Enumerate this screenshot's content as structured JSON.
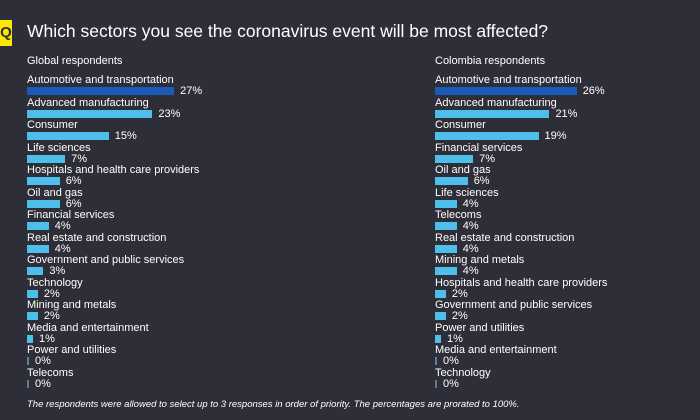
{
  "badge": "Q",
  "title": "Which sectors you see the coronavirus event will be most affected?",
  "footnote": "The respondents were allowed to select up to 3 responses in order of priority. The percentages are prorated to 100%.",
  "colors": {
    "background": "#2e2e38",
    "top_bar": "#1a5ab8",
    "bar": "#4ebeeb",
    "zero_bar": "#5a7f9a",
    "badge": "#ffe600"
  },
  "chart_data": [
    {
      "type": "bar",
      "orientation": "horizontal",
      "title": "Global respondents",
      "categories": [
        "Automotive and transportation",
        "Advanced manufacturing",
        "Consumer",
        "Life sciences",
        "Hospitals and health care providers",
        "Oil and gas",
        "Financial services",
        "Real estate and construction",
        "Government and public services",
        "Technology",
        "Mining and metals",
        "Media and entertainment",
        "Power and utilities",
        "Telecoms"
      ],
      "values": [
        27,
        23,
        15,
        7,
        6,
        6,
        4,
        4,
        3,
        2,
        2,
        1,
        0,
        0
      ],
      "labels": [
        "27%",
        "23%",
        "15%",
        "7%",
        "6%",
        "6%",
        "4%",
        "4%",
        "3%",
        "2%",
        "2%",
        "1%",
        "0%",
        "0%"
      ],
      "unit": "%",
      "highlight_first": true
    },
    {
      "type": "bar",
      "orientation": "horizontal",
      "title": "Colombia respondents",
      "categories": [
        "Automotive and transportation",
        "Advanced manufacturing",
        "Consumer",
        "Financial services",
        "Oil and gas",
        "Life sciences",
        "Telecoms",
        "Real estate and construction",
        "Mining and metals",
        "Hospitals and health care providers",
        "Government and public services",
        "Power and utilities",
        "Media and entertainment",
        "Technology"
      ],
      "values": [
        26,
        21,
        19,
        7,
        6,
        4,
        4,
        4,
        4,
        2,
        2,
        1,
        0,
        0
      ],
      "labels": [
        "26%",
        "21%",
        "19%",
        "7%",
        "6%",
        "4%",
        "4%",
        "4%",
        "4%",
        "2%",
        "2%",
        "1%",
        "0%",
        "0%"
      ],
      "unit": "%",
      "highlight_first": true
    }
  ]
}
